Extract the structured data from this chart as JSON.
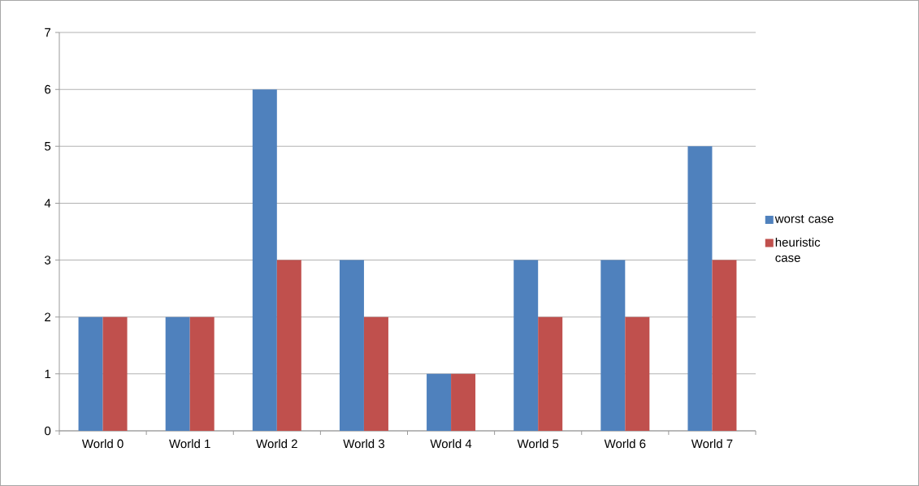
{
  "chart_data": {
    "type": "bar",
    "categories": [
      "World 0",
      "World 1",
      "World 2",
      "World 3",
      "World 4",
      "World 5",
      "World 6",
      "World 7"
    ],
    "series": [
      {
        "name": "worst case",
        "color": "#4f81bd",
        "values": [
          2,
          2,
          6,
          3,
          1,
          3,
          3,
          5
        ]
      },
      {
        "name": "heuristic case",
        "color": "#c0504d",
        "values": [
          2,
          2,
          3,
          2,
          1,
          2,
          2,
          3
        ]
      }
    ],
    "ylim": [
      0,
      7
    ],
    "yticks": [
      0,
      1,
      2,
      3,
      4,
      5,
      6,
      7
    ],
    "grid": "y",
    "legend": "right"
  }
}
